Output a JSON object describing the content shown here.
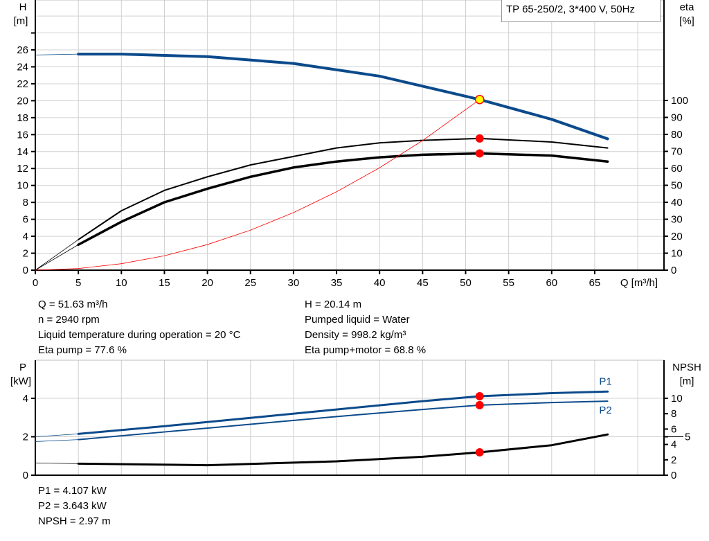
{
  "title": "TP 65-250/2, 3*400 V, 50Hz",
  "colors": {
    "head": "#0b4a8b",
    "efficiency": "#000000",
    "system": "#ff0000",
    "power": "#0b4a8b",
    "npsh": "#000000",
    "duty_point": "#ff0000",
    "duty_point_head": "#ffff00",
    "grid": "#d0d0d0"
  },
  "chart_data": [
    {
      "type": "line",
      "xlabel": "Q [m³/h]",
      "ylabel": "H",
      "ylabel_unit": "[m]",
      "y2label": "eta",
      "y2label_unit": "[%]",
      "xlim": [
        0,
        73
      ],
      "ylim": [
        0,
        31.9
      ],
      "y2lim": [
        0,
        130
      ],
      "grid": true,
      "xticks": [
        0,
        5,
        10,
        15,
        20,
        25,
        30,
        35,
        40,
        45,
        50,
        55,
        60,
        65
      ],
      "yticks": [
        0,
        2,
        4,
        6,
        8,
        10,
        12,
        14,
        16,
        18,
        20,
        22,
        24,
        26
      ],
      "y2ticks": [
        0,
        10,
        20,
        30,
        40,
        50,
        60,
        70,
        80,
        90,
        100
      ],
      "series": [
        {
          "id": "head",
          "axis": "left",
          "x": [
            0,
            5,
            10,
            20,
            30,
            40,
            51.63,
            60,
            66.5
          ],
          "y": [
            25.4,
            25.5,
            25.5,
            25.2,
            24.4,
            22.9,
            20.14,
            17.8,
            15.5
          ]
        },
        {
          "id": "eta-pump",
          "axis": "right",
          "x": [
            0,
            5,
            10,
            15,
            20,
            25,
            30,
            35,
            40,
            45,
            51.63,
            60,
            66.5
          ],
          "y": [
            0,
            18,
            35,
            47,
            55,
            62,
            67,
            72,
            75,
            76.5,
            77.6,
            75.5,
            72
          ]
        },
        {
          "id": "eta-pump-motor",
          "axis": "right",
          "x": [
            0,
            5,
            10,
            15,
            20,
            25,
            30,
            35,
            40,
            45,
            51.63,
            60,
            66.5
          ],
          "y": [
            0,
            15,
            28.5,
            40,
            48,
            55,
            60.5,
            64,
            66.5,
            68,
            68.8,
            67.5,
            64
          ]
        },
        {
          "id": "system-curve",
          "axis": "left",
          "x": [
            0,
            5,
            10,
            15,
            20,
            25,
            30,
            35,
            40,
            45,
            51.63
          ],
          "y": [
            0,
            0.19,
            0.76,
            1.7,
            3.02,
            4.72,
            6.8,
            9.25,
            12.09,
            15.3,
            20.14
          ]
        }
      ],
      "duty_point": {
        "Q": 51.63,
        "H": 20.14,
        "eta_pump": 77.6,
        "eta_total": 68.8
      }
    },
    {
      "type": "line",
      "ylabel": "P",
      "ylabel_unit": "[kW]",
      "y2label": "NPSH",
      "y2label_unit": "[m]",
      "xlim": [
        0,
        73
      ],
      "ylim": [
        0,
        6
      ],
      "y2lim": [
        0,
        15
      ],
      "grid": true,
      "yticks": [
        0,
        2,
        4
      ],
      "y2ticks": [
        0,
        2,
        4,
        5,
        6,
        8,
        10
      ],
      "series": [
        {
          "id": "P1",
          "name": "P1",
          "axis": "left",
          "x": [
            0,
            5,
            15,
            25,
            35,
            45,
            51.63,
            60,
            66.5
          ],
          "y": [
            2.0,
            2.15,
            2.55,
            2.98,
            3.42,
            3.85,
            4.107,
            4.27,
            4.35
          ]
        },
        {
          "id": "P2",
          "name": "P2",
          "axis": "left",
          "x": [
            0,
            5,
            15,
            25,
            35,
            45,
            51.63,
            60,
            66.5
          ],
          "y": [
            1.75,
            1.85,
            2.25,
            2.65,
            3.05,
            3.42,
            3.643,
            3.78,
            3.85
          ]
        },
        {
          "id": "NPSH",
          "axis": "right",
          "x": [
            0,
            5,
            20,
            35,
            45,
            51.63,
            60,
            66.5
          ],
          "y": [
            1.6,
            1.5,
            1.3,
            1.8,
            2.4,
            2.97,
            3.9,
            5.3
          ]
        }
      ],
      "duty_point": {
        "Q": 51.63,
        "P1": 4.107,
        "P2": 3.643,
        "NPSH": 2.97
      }
    }
  ],
  "info_top_left": [
    "Q = 51.63 m³/h",
    "n = 2940 rpm",
    "Liquid temperature during operation = 20 °C",
    "Eta pump = 77.6 %"
  ],
  "info_top_right": [
    "H = 20.14 m",
    "Pumped liquid = Water",
    "Density = 998.2 kg/m³",
    "Eta pump+motor = 68.8 %"
  ],
  "info_bottom": [
    "P1 = 4.107 kW",
    "P2 = 3.643 kW",
    "NPSH = 2.97 m"
  ]
}
